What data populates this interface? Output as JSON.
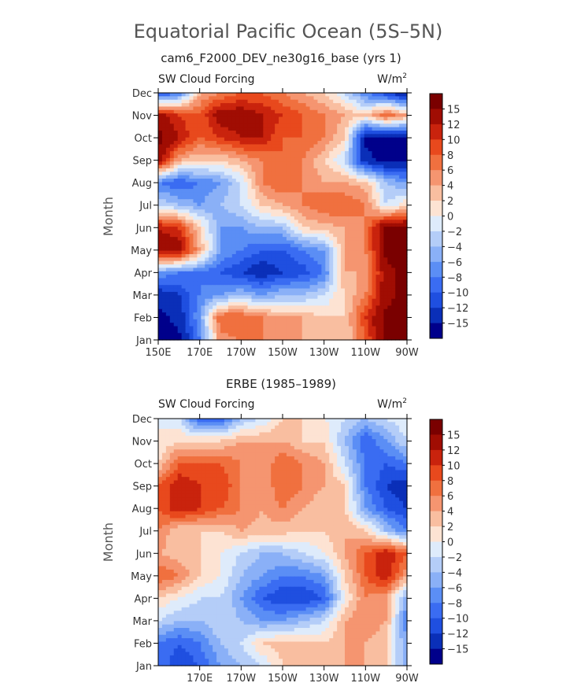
{
  "figure": {
    "title": "Equatorial Pacific Ocean (5S–5N)"
  },
  "chart_data": [
    {
      "type": "heatmap",
      "title": "cam6_F2000_DEV_ne30g16_base (yrs 1)",
      "left_label": "SW Cloud Forcing",
      "right_label_base": "W/m",
      "right_label_sup": "2",
      "ylabel": "Month",
      "x_tick_labels": [
        "150E",
        "170E",
        "170W",
        "150W",
        "130W",
        "110W",
        "90W"
      ],
      "y_tick_labels": [
        "Jan",
        "Feb",
        "Mar",
        "Apr",
        "May",
        "Jun",
        "Jul",
        "Aug",
        "Sep",
        "Oct",
        "Nov",
        "Dec"
      ],
      "x_centers": [
        150,
        160,
        170,
        180,
        190,
        200,
        210,
        220,
        230,
        240,
        250,
        260,
        270
      ],
      "months": [
        "Jan",
        "Feb",
        "Mar",
        "Apr",
        "May",
        "Jun",
        "Jul",
        "Aug",
        "Sep",
        "Oct",
        "Nov",
        "Dec"
      ],
      "z": [
        [
          -16,
          -16,
          -8,
          5,
          6,
          6,
          4,
          4,
          4,
          2,
          8,
          16,
          16
        ],
        [
          -16,
          -14,
          -6,
          8,
          8,
          6,
          4,
          4,
          2,
          2,
          10,
          16,
          16
        ],
        [
          -14,
          -12,
          -8,
          -6,
          -4,
          -6,
          -4,
          -4,
          -2,
          2,
          6,
          14,
          16
        ],
        [
          -6,
          -8,
          -8,
          -10,
          -12,
          -14,
          -12,
          -11,
          -8,
          4,
          4,
          14,
          16
        ],
        [
          14,
          14,
          4,
          -6,
          -8,
          -10,
          -10,
          -8,
          -6,
          4,
          6,
          16,
          16
        ],
        [
          12,
          10,
          2,
          -6,
          -6,
          -4,
          -4,
          2,
          3,
          4,
          6,
          16,
          16
        ],
        [
          -2,
          -4,
          -6,
          -4,
          -2,
          2,
          4,
          6,
          8,
          8,
          6,
          -2,
          2
        ],
        [
          -8,
          -10,
          -8,
          -6,
          -2,
          6,
          8,
          6,
          4,
          4,
          3,
          -4,
          -6
        ],
        [
          14,
          4,
          2,
          2,
          4,
          6,
          8,
          6,
          2,
          -2,
          -14,
          -16,
          -16
        ],
        [
          16,
          12,
          8,
          10,
          12,
          12,
          8,
          8,
          6,
          2,
          -16,
          -16,
          -16
        ],
        [
          14,
          10,
          8,
          14,
          14,
          12,
          10,
          8,
          6,
          4,
          2,
          8,
          4
        ],
        [
          -12,
          -8,
          4,
          6,
          8,
          8,
          6,
          4,
          2,
          -2,
          -8,
          -12,
          -16
        ]
      ],
      "levels": [
        -15,
        -12,
        -10,
        -8,
        -6,
        -4,
        -2,
        0,
        2,
        4,
        6,
        8,
        10,
        12,
        15
      ],
      "colors": [
        "#00008b",
        "#0a2fb8",
        "#1f4fe0",
        "#3a6cf2",
        "#5b8ef5",
        "#8ab0f7",
        "#b4cdf8",
        "#deebfb",
        "#fde3d3",
        "#f9bea0",
        "#f59570",
        "#f0703f",
        "#e8491d",
        "#c9230d",
        "#a00d03",
        "#7a0000"
      ]
    },
    {
      "type": "heatmap",
      "title": "ERBE (1985–1989)",
      "left_label": "SW Cloud Forcing",
      "right_label_base": "W/m",
      "right_label_sup": "2",
      "ylabel": "Month",
      "x_tick_labels": [
        "170E",
        "170W",
        "150W",
        "130W",
        "110W",
        "90W"
      ],
      "y_tick_labels": [
        "Jan",
        "Feb",
        "Mar",
        "Apr",
        "May",
        "Jun",
        "Jul",
        "Aug",
        "Sep",
        "Oct",
        "Nov",
        "Dec"
      ],
      "x_centers": [
        150,
        160,
        170,
        180,
        190,
        200,
        210,
        220,
        230,
        240,
        250,
        260,
        270
      ],
      "months": [
        "Jan",
        "Feb",
        "Mar",
        "Apr",
        "May",
        "Jun",
        "Jul",
        "Aug",
        "Sep",
        "Oct",
        "Nov",
        "Dec"
      ],
      "z": [
        [
          -8,
          -12,
          -10,
          -6,
          -4,
          -2,
          2,
          2,
          2,
          4,
          4,
          2,
          -6
        ],
        [
          -8,
          -10,
          -8,
          -4,
          -2,
          2,
          3,
          2,
          2,
          4,
          4,
          2,
          -6
        ],
        [
          -2,
          -4,
          -4,
          -2,
          -4,
          -6,
          -6,
          -4,
          -2,
          4,
          6,
          4,
          -8
        ],
        [
          2,
          0,
          -2,
          -2,
          -6,
          -10,
          -12,
          -12,
          -10,
          0,
          6,
          4,
          -6
        ],
        [
          8,
          6,
          2,
          0,
          -4,
          -6,
          -8,
          -8,
          -6,
          2,
          8,
          12,
          4
        ],
        [
          4,
          3,
          2,
          0,
          -2,
          -4,
          -4,
          -2,
          0,
          4,
          8,
          12,
          8
        ],
        [
          6,
          2,
          2,
          2,
          4,
          3,
          3,
          2,
          2,
          4,
          2,
          -4,
          -8
        ],
        [
          8,
          12,
          10,
          8,
          6,
          4,
          6,
          4,
          2,
          2,
          -6,
          -10,
          -12
        ],
        [
          8,
          12,
          10,
          10,
          6,
          4,
          8,
          6,
          4,
          2,
          -8,
          -12,
          -14
        ],
        [
          2,
          8,
          8,
          8,
          6,
          4,
          8,
          6,
          4,
          -2,
          -8,
          -10,
          -8
        ],
        [
          0,
          2,
          2,
          2,
          4,
          4,
          4,
          2,
          2,
          -4,
          -10,
          -6,
          -2
        ],
        [
          0,
          -2,
          -10,
          -10,
          -4,
          -2,
          2,
          2,
          0,
          -2,
          -4,
          -2,
          0
        ]
      ],
      "levels": [
        -15,
        -12,
        -10,
        -8,
        -6,
        -4,
        -2,
        0,
        2,
        4,
        6,
        8,
        10,
        12,
        15
      ],
      "colors": [
        "#00008b",
        "#0a2fb8",
        "#1f4fe0",
        "#3a6cf2",
        "#5b8ef5",
        "#8ab0f7",
        "#b4cdf8",
        "#deebfb",
        "#fde3d3",
        "#f9bea0",
        "#f59570",
        "#f0703f",
        "#e8491d",
        "#c9230d",
        "#a00d03",
        "#7a0000"
      ]
    }
  ],
  "colorbar": {
    "labels": [
      "15",
      "12",
      "10",
      "8",
      "6",
      "4",
      "2",
      "0",
      "−2",
      "−4",
      "−6",
      "−8",
      "−10",
      "−12",
      "−15"
    ]
  }
}
